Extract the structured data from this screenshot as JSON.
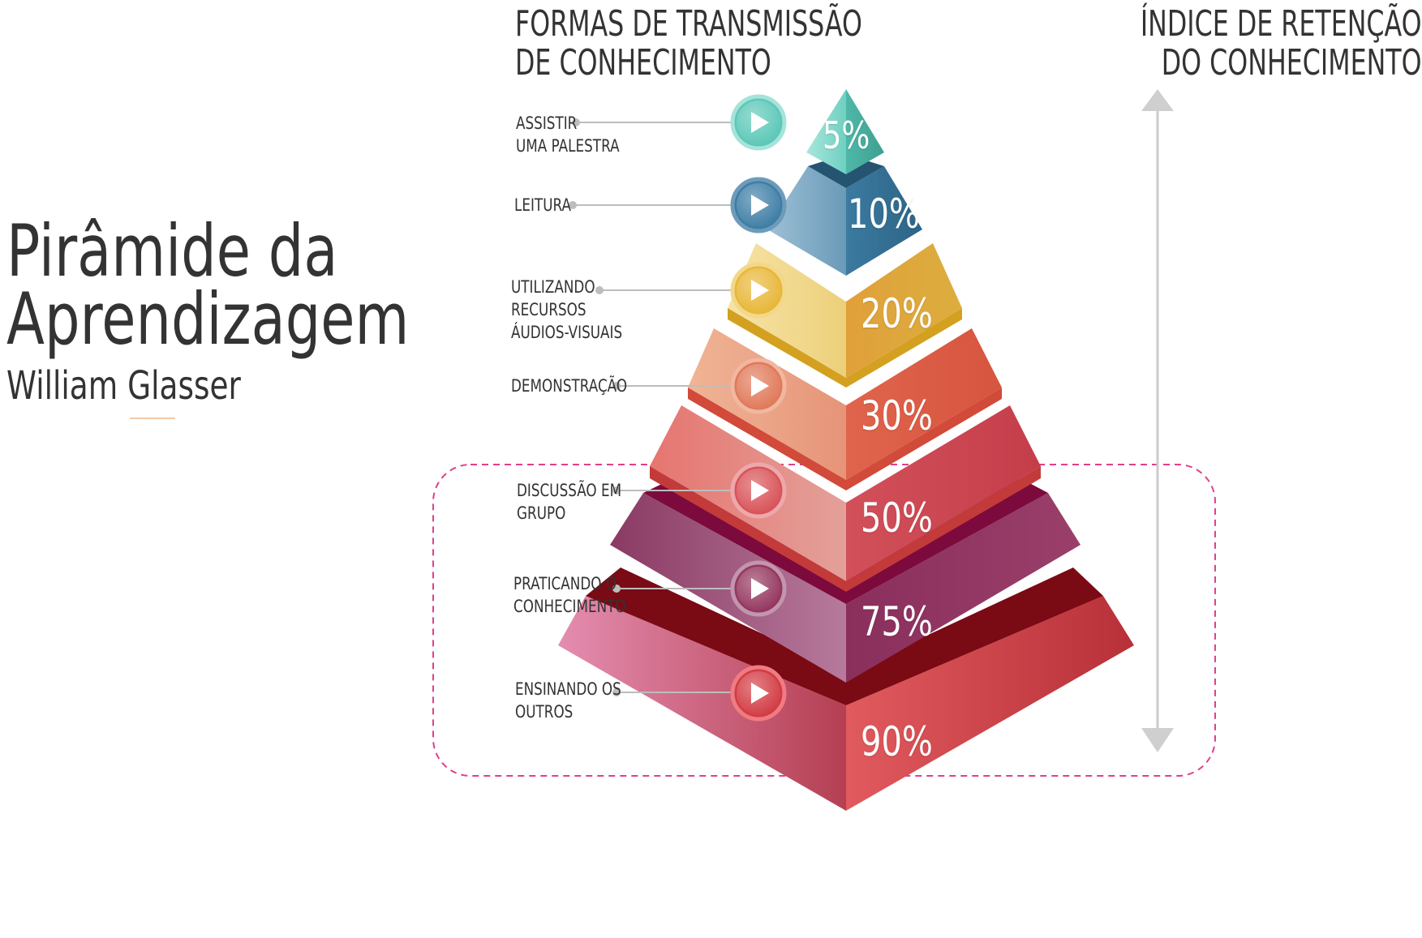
{
  "title": {
    "line1": "Pirâmide da",
    "line2": "Aprendizagem",
    "author": "William Glasser"
  },
  "headers": {
    "left": [
      "FORMAS DE TRANSMISSÃO",
      "DE CONHECIMENTO"
    ],
    "right": [
      "ÍNDICE DE RETENÇÃO",
      "DO CONHECIMENTO"
    ]
  },
  "levels": [
    {
      "label": [
        "ASSISTIR",
        "UMA PALESTRA"
      ],
      "percent": "5%",
      "color": "#5cc8b8"
    },
    {
      "label": [
        "LEITURA"
      ],
      "percent": "10%",
      "color": "#3f7ea6"
    },
    {
      "label": [
        "UTILIZANDO",
        "RECURSOS",
        "ÁUDIOS-VISUAIS"
      ],
      "percent": "20%",
      "color": "#e8b73a"
    },
    {
      "label": [
        "DEMONSTRAÇÃO"
      ],
      "percent": "30%",
      "color": "#e07a5a"
    },
    {
      "label": [
        "DISCUSSÃO EM",
        "GRUPO"
      ],
      "percent": "50%",
      "color": "#d8545a"
    },
    {
      "label": [
        "PRATICANDO O",
        "CONHECIMENTO"
      ],
      "percent": "75%",
      "color": "#94385f"
    },
    {
      "label": [
        "ENSINANDO OS",
        "OUTROS"
      ],
      "percent": "90%",
      "color": "#d23c44"
    }
  ],
  "icons": {
    "play": "play-icon",
    "arrow": "double-arrow-icon"
  },
  "colors": {
    "highlight_border": "#e0408a",
    "arrow": "#cccccc",
    "text": "#333333"
  }
}
